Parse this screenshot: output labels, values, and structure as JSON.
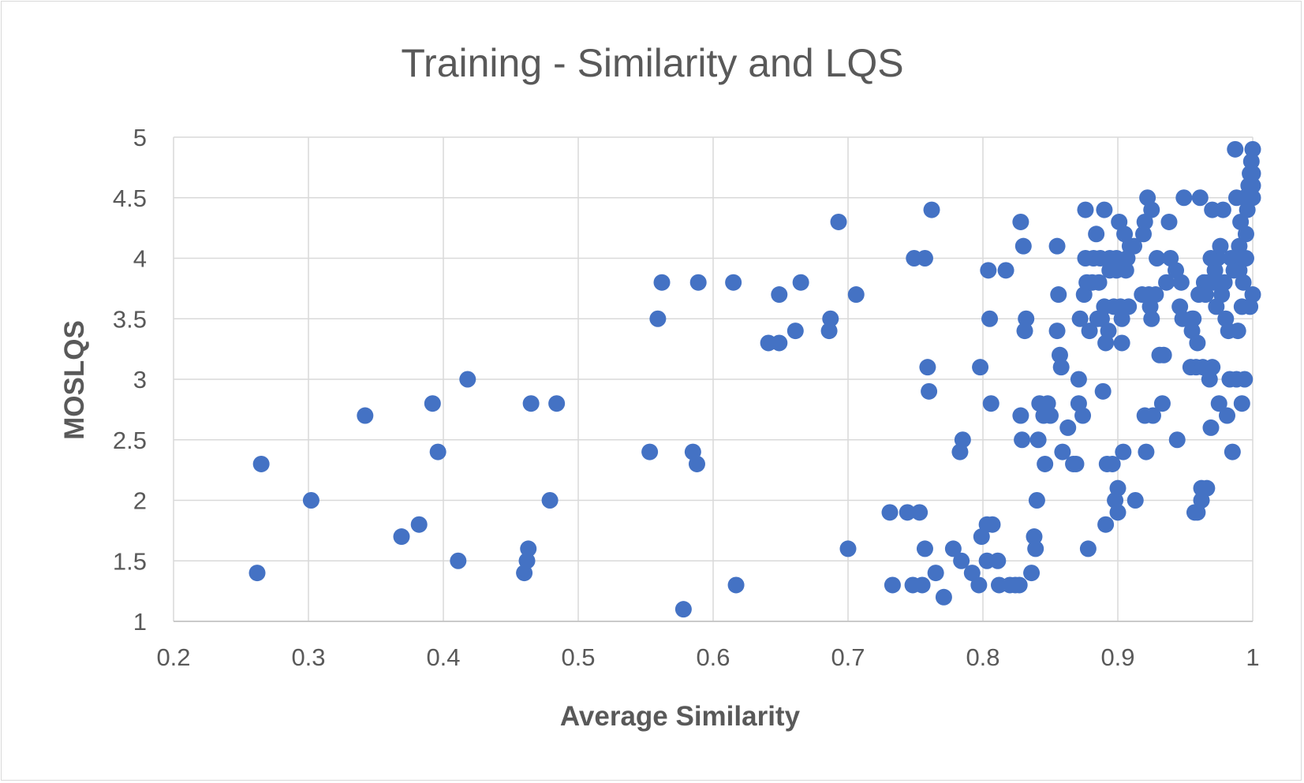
{
  "chart_data": {
    "type": "scatter",
    "title": "Training - Similarity and LQS",
    "xlabel": "Average Similarity",
    "ylabel": "MOSLQS",
    "xlim": [
      0.2,
      1.0
    ],
    "ylim": [
      1,
      5
    ],
    "x_ticks": [
      "0.2",
      "0.3",
      "0.4",
      "0.5",
      "0.6",
      "0.7",
      "0.8",
      "0.9",
      "1"
    ],
    "y_ticks": [
      "1",
      "1.5",
      "2",
      "2.5",
      "3",
      "3.5",
      "4",
      "4.5",
      "5"
    ],
    "grid": true,
    "legend": "none",
    "marker_color": "#4472c4",
    "points": [
      [
        0.262,
        1.4
      ],
      [
        0.265,
        2.3
      ],
      [
        0.302,
        2.0
      ],
      [
        0.342,
        2.7
      ],
      [
        0.369,
        1.7
      ],
      [
        0.382,
        1.8
      ],
      [
        0.392,
        2.8
      ],
      [
        0.396,
        2.4
      ],
      [
        0.411,
        1.5
      ],
      [
        0.418,
        3.0
      ],
      [
        0.46,
        1.4
      ],
      [
        0.462,
        1.5
      ],
      [
        0.463,
        1.6
      ],
      [
        0.465,
        2.8
      ],
      [
        0.479,
        2.0
      ],
      [
        0.484,
        2.8
      ],
      [
        0.553,
        2.4
      ],
      [
        0.559,
        3.5
      ],
      [
        0.562,
        3.8
      ],
      [
        0.578,
        1.1
      ],
      [
        0.585,
        2.4
      ],
      [
        0.588,
        2.3
      ],
      [
        0.589,
        3.8
      ],
      [
        0.615,
        3.8
      ],
      [
        0.617,
        1.3
      ],
      [
        0.641,
        3.3
      ],
      [
        0.649,
        3.3
      ],
      [
        0.649,
        3.7
      ],
      [
        0.661,
        3.4
      ],
      [
        0.665,
        3.8
      ],
      [
        0.686,
        3.4
      ],
      [
        0.687,
        3.5
      ],
      [
        0.693,
        4.3
      ],
      [
        0.7,
        1.6
      ],
      [
        0.706,
        3.7
      ],
      [
        0.731,
        1.9
      ],
      [
        0.733,
        1.3
      ],
      [
        0.744,
        1.9
      ],
      [
        0.748,
        1.3
      ],
      [
        0.749,
        4.0
      ],
      [
        0.753,
        1.9
      ],
      [
        0.755,
        1.3
      ],
      [
        0.757,
        1.6
      ],
      [
        0.757,
        4.0
      ],
      [
        0.759,
        3.1
      ],
      [
        0.76,
        2.9
      ],
      [
        0.762,
        4.4
      ],
      [
        0.765,
        1.4
      ],
      [
        0.771,
        1.2
      ],
      [
        0.778,
        1.6
      ],
      [
        0.783,
        2.4
      ],
      [
        0.784,
        1.5
      ],
      [
        0.785,
        2.5
      ],
      [
        0.792,
        1.4
      ],
      [
        0.797,
        1.3
      ],
      [
        0.798,
        3.1
      ],
      [
        0.799,
        1.7
      ],
      [
        0.803,
        1.8
      ],
      [
        0.803,
        1.5
      ],
      [
        0.804,
        3.9
      ],
      [
        0.805,
        3.5
      ],
      [
        0.806,
        2.8
      ],
      [
        0.807,
        1.8
      ],
      [
        0.811,
        1.5
      ],
      [
        0.812,
        1.3
      ],
      [
        0.817,
        3.9
      ],
      [
        0.82,
        1.3
      ],
      [
        0.824,
        1.3
      ],
      [
        0.827,
        1.3
      ],
      [
        0.828,
        4.3
      ],
      [
        0.828,
        2.7
      ],
      [
        0.829,
        2.5
      ],
      [
        0.83,
        4.1
      ],
      [
        0.831,
        3.4
      ],
      [
        0.832,
        3.5
      ],
      [
        0.836,
        1.4
      ],
      [
        0.838,
        1.7
      ],
      [
        0.839,
        1.6
      ],
      [
        0.84,
        2.0
      ],
      [
        0.841,
        2.5
      ],
      [
        0.842,
        2.8
      ],
      [
        0.845,
        2.7
      ],
      [
        0.846,
        2.3
      ],
      [
        0.848,
        2.8
      ],
      [
        0.85,
        2.7
      ],
      [
        0.855,
        4.1
      ],
      [
        0.855,
        3.4
      ],
      [
        0.856,
        3.7
      ],
      [
        0.857,
        3.2
      ],
      [
        0.858,
        3.1
      ],
      [
        0.859,
        2.4
      ],
      [
        0.863,
        2.6
      ],
      [
        0.867,
        2.3
      ],
      [
        0.869,
        2.3
      ],
      [
        0.871,
        3.0
      ],
      [
        0.871,
        2.8
      ],
      [
        0.872,
        3.5
      ],
      [
        0.874,
        2.7
      ],
      [
        0.875,
        3.7
      ],
      [
        0.876,
        4.0
      ],
      [
        0.876,
        4.4
      ],
      [
        0.877,
        3.8
      ],
      [
        0.878,
        1.6
      ],
      [
        0.879,
        3.4
      ],
      [
        0.881,
        3.8
      ],
      [
        0.882,
        4.0
      ],
      [
        0.884,
        4.2
      ],
      [
        0.885,
        3.5
      ],
      [
        0.886,
        3.8
      ],
      [
        0.887,
        4.0
      ],
      [
        0.888,
        3.5
      ],
      [
        0.889,
        2.9
      ],
      [
        0.89,
        4.4
      ],
      [
        0.89,
        3.6
      ],
      [
        0.891,
        3.3
      ],
      [
        0.891,
        1.8
      ],
      [
        0.892,
        2.3
      ],
      [
        0.893,
        3.4
      ],
      [
        0.894,
        4.0
      ],
      [
        0.894,
        3.9
      ],
      [
        0.896,
        2.3
      ],
      [
        0.897,
        3.6
      ],
      [
        0.898,
        2.0
      ],
      [
        0.899,
        3.9
      ],
      [
        0.899,
        4.0
      ],
      [
        0.9,
        2.1
      ],
      [
        0.9,
        1.9
      ],
      [
        0.901,
        4.3
      ],
      [
        0.902,
        3.6
      ],
      [
        0.903,
        3.5
      ],
      [
        0.903,
        3.3
      ],
      [
        0.904,
        2.4
      ],
      [
        0.905,
        4.2
      ],
      [
        0.906,
        3.9
      ],
      [
        0.907,
        4.0
      ],
      [
        0.908,
        3.6
      ],
      [
        0.909,
        4.1
      ],
      [
        0.912,
        4.1
      ],
      [
        0.913,
        2.0
      ],
      [
        0.918,
        3.7
      ],
      [
        0.919,
        4.2
      ],
      [
        0.92,
        4.3
      ],
      [
        0.92,
        2.7
      ],
      [
        0.921,
        2.4
      ],
      [
        0.922,
        4.5
      ],
      [
        0.923,
        3.7
      ],
      [
        0.924,
        3.6
      ],
      [
        0.925,
        3.5
      ],
      [
        0.925,
        4.4
      ],
      [
        0.926,
        2.7
      ],
      [
        0.928,
        3.7
      ],
      [
        0.929,
        4.0
      ],
      [
        0.931,
        3.2
      ],
      [
        0.933,
        2.8
      ],
      [
        0.934,
        3.2
      ],
      [
        0.936,
        3.8
      ],
      [
        0.938,
        4.3
      ],
      [
        0.939,
        4.0
      ],
      [
        0.943,
        3.9
      ],
      [
        0.944,
        2.5
      ],
      [
        0.946,
        3.6
      ],
      [
        0.947,
        3.8
      ],
      [
        0.948,
        3.5
      ],
      [
        0.949,
        4.5
      ],
      [
        0.954,
        3.1
      ],
      [
        0.955,
        3.5
      ],
      [
        0.955,
        3.4
      ],
      [
        0.956,
        3.5
      ],
      [
        0.957,
        1.9
      ],
      [
        0.958,
        3.1
      ],
      [
        0.959,
        1.9
      ],
      [
        0.959,
        3.3
      ],
      [
        0.96,
        3.7
      ],
      [
        0.961,
        4.5
      ],
      [
        0.962,
        2.0
      ],
      [
        0.962,
        2.1
      ],
      [
        0.963,
        3.1
      ],
      [
        0.964,
        3.8
      ],
      [
        0.965,
        3.7
      ],
      [
        0.966,
        2.1
      ],
      [
        0.967,
        3.8
      ],
      [
        0.968,
        3.0
      ],
      [
        0.969,
        2.6
      ],
      [
        0.969,
        4.0
      ],
      [
        0.97,
        4.4
      ],
      [
        0.97,
        3.1
      ],
      [
        0.971,
        3.8
      ],
      [
        0.972,
        3.9
      ],
      [
        0.973,
        3.6
      ],
      [
        0.974,
        4.0
      ],
      [
        0.975,
        2.8
      ],
      [
        0.976,
        4.1
      ],
      [
        0.977,
        3.7
      ],
      [
        0.978,
        4.4
      ],
      [
        0.979,
        3.8
      ],
      [
        0.98,
        3.5
      ],
      [
        0.981,
        2.7
      ],
      [
        0.982,
        3.4
      ],
      [
        0.983,
        3.0
      ],
      [
        0.984,
        4.0
      ],
      [
        0.985,
        2.4
      ],
      [
        0.986,
        3.9
      ],
      [
        0.987,
        4.9
      ],
      [
        0.988,
        4.5
      ],
      [
        0.988,
        3.0
      ],
      [
        0.989,
        3.4
      ],
      [
        0.99,
        4.1
      ],
      [
        0.99,
        3.9
      ],
      [
        0.991,
        4.3
      ],
      [
        0.992,
        2.8
      ],
      [
        0.992,
        3.6
      ],
      [
        0.993,
        4.0
      ],
      [
        0.993,
        3.8
      ],
      [
        0.994,
        4.5
      ],
      [
        0.994,
        3.0
      ],
      [
        0.995,
        4.2
      ],
      [
        0.995,
        4.0
      ],
      [
        0.996,
        4.4
      ],
      [
        0.997,
        4.6
      ],
      [
        0.998,
        4.7
      ],
      [
        0.998,
        3.6
      ],
      [
        0.999,
        4.8
      ],
      [
        1.0,
        4.9
      ],
      [
        1.0,
        4.5
      ],
      [
        1.0,
        3.7
      ],
      [
        1.0,
        4.6
      ],
      [
        1.0,
        4.7
      ]
    ]
  }
}
